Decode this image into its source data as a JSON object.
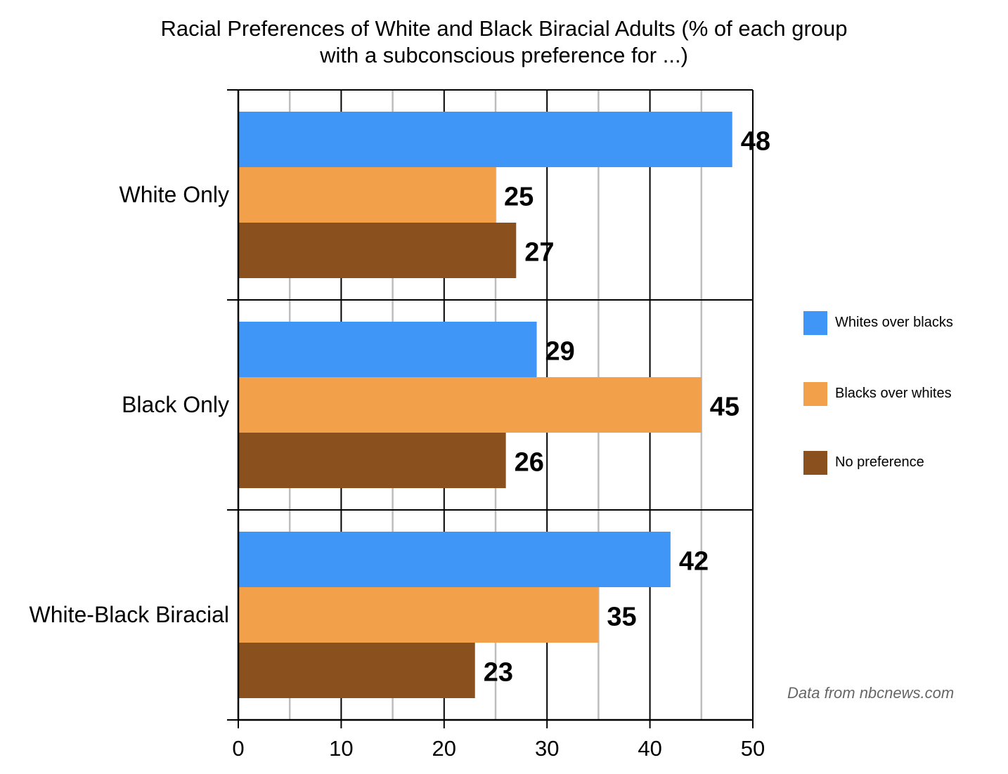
{
  "title_line1": "Racial Preferences of White and Black Biracial Adults (% of each group",
  "title_line2": "with a subconscious preference for ...)",
  "source": "Data from nbcnews.com",
  "colors": {
    "whites_over_blacks": "#4096f7",
    "blacks_over_whites": "#f2a04a",
    "no_preference": "#8a501d"
  },
  "chart_data": {
    "type": "bar",
    "orientation": "horizontal",
    "categories": [
      "White Only",
      "Black Only",
      "White-Black Biracial"
    ],
    "series": [
      {
        "name": "Whites over blacks",
        "values": [
          48,
          29,
          42
        ]
      },
      {
        "name": "Blacks over whites",
        "values": [
          25,
          45,
          35
        ]
      },
      {
        "name": "No preference",
        "values": [
          27,
          26,
          23
        ]
      }
    ],
    "xlim": [
      0,
      50
    ],
    "xticks": [
      "0",
      "10",
      "20",
      "30",
      "40",
      "50"
    ],
    "grid": true,
    "legend_position": "right"
  }
}
